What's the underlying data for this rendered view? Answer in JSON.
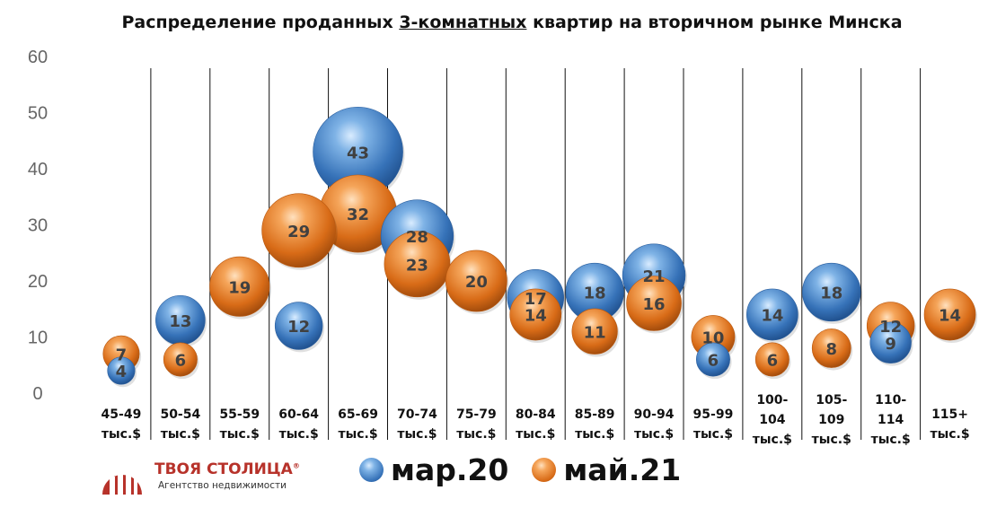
{
  "chart_data": {
    "type": "bubble",
    "title_parts": [
      "Распределение проданных ",
      "3-комнатных",
      " квартир на вторичном рынке Минска"
    ],
    "xlabel": "",
    "ylabel": "",
    "ylim": [
      0,
      60
    ],
    "yticks": [
      0,
      10,
      20,
      30,
      40,
      50,
      60
    ],
    "grid": false,
    "categories": [
      [
        "45-49",
        "тыс.$"
      ],
      [
        "50-54",
        "тыс.$"
      ],
      [
        "55-59",
        "тыс.$"
      ],
      [
        "60-64",
        "тыс.$"
      ],
      [
        "65-69",
        "тыс.$"
      ],
      [
        "70-74",
        "тыс.$"
      ],
      [
        "75-79",
        "тыс.$"
      ],
      [
        "80-84",
        "тыс.$"
      ],
      [
        "85-89",
        "тыс.$"
      ],
      [
        "90-94",
        "тыс.$"
      ],
      [
        "95-99",
        "тыс.$"
      ],
      [
        "100-",
        "104",
        "тыс.$"
      ],
      [
        "105-",
        "109",
        "тыс.$"
      ],
      [
        "110-",
        "114",
        "тыс.$"
      ],
      [
        "115+",
        "тыс.$"
      ]
    ],
    "series": [
      {
        "name": "мар.20",
        "color": "#3d7fc4",
        "values": [
          4,
          13,
          null,
          12,
          43,
          28,
          null,
          17,
          18,
          21,
          6,
          14,
          18,
          9,
          null
        ],
        "labels": [
          "4",
          "13",
          "",
          "12",
          "43",
          "28",
          "",
          "17",
          "18",
          "21",
          "6",
          "14",
          "18",
          "9",
          ""
        ]
      },
      {
        "name": "май.21",
        "color": "#e07a25",
        "values": [
          7,
          6,
          19,
          29,
          32,
          23,
          20,
          14,
          11,
          16,
          10,
          6,
          8,
          12,
          14
        ],
        "labels": [
          "7",
          "6",
          "19",
          "29",
          "32",
          "23",
          "20",
          "14",
          "11",
          "16",
          "10",
          "6",
          "8",
          "12",
          "14"
        ]
      }
    ],
    "legend_position": "bottom"
  },
  "logo": {
    "name": "ТВОЯ СТОЛИЦА",
    "registered": "®",
    "tagline": "Агентство недвижимости",
    "color": "#b7322a",
    "icon": "building-logo-icon"
  }
}
